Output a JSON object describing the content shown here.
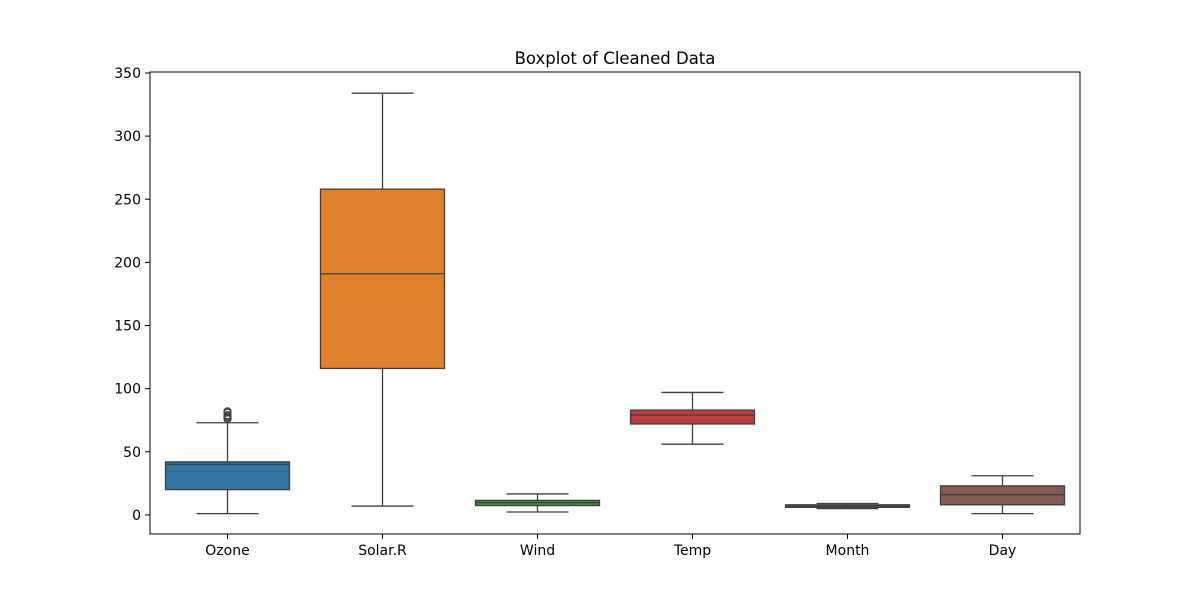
{
  "chart_data": {
    "type": "boxplot",
    "title": "Boxplot of Cleaned Data",
    "xlabel": "",
    "ylabel": "",
    "ylim": [
      -15,
      350
    ],
    "yticks": [
      0,
      50,
      100,
      150,
      200,
      250,
      300,
      350
    ],
    "categories": [
      "Ozone",
      "Solar.R",
      "Wind",
      "Temp",
      "Month",
      "Day"
    ],
    "boxes": [
      {
        "category": "Ozone",
        "whisker_low": 1,
        "q1": 20,
        "median": 40,
        "q3": 42,
        "whisker_high": 73,
        "outliers": [
          76,
          77,
          78,
          79,
          81,
          82
        ],
        "color": "#3274a1"
      },
      {
        "category": "Solar.R",
        "whisker_low": 7,
        "q1": 116,
        "median": 191,
        "q3": 258,
        "whisker_high": 334,
        "outliers": [],
        "color": "#e1812c"
      },
      {
        "category": "Wind",
        "whisker_low": 2.3,
        "q1": 7.4,
        "median": 9.7,
        "q3": 11.5,
        "whisker_high": 16.6,
        "outliers": [],
        "color": "#3a923a"
      },
      {
        "category": "Temp",
        "whisker_low": 56,
        "q1": 72,
        "median": 79,
        "q3": 83,
        "whisker_high": 97,
        "outliers": [],
        "color": "#c03d3e"
      },
      {
        "category": "Month",
        "whisker_low": 5,
        "q1": 6,
        "median": 7,
        "q3": 8,
        "whisker_high": 9,
        "outliers": [],
        "color": "#9372b2"
      },
      {
        "category": "Day",
        "whisker_low": 1,
        "q1": 8,
        "median": 16,
        "q3": 23,
        "whisker_high": 31,
        "outliers": [],
        "color": "#845b53"
      }
    ],
    "grid": false,
    "legend": "none"
  }
}
